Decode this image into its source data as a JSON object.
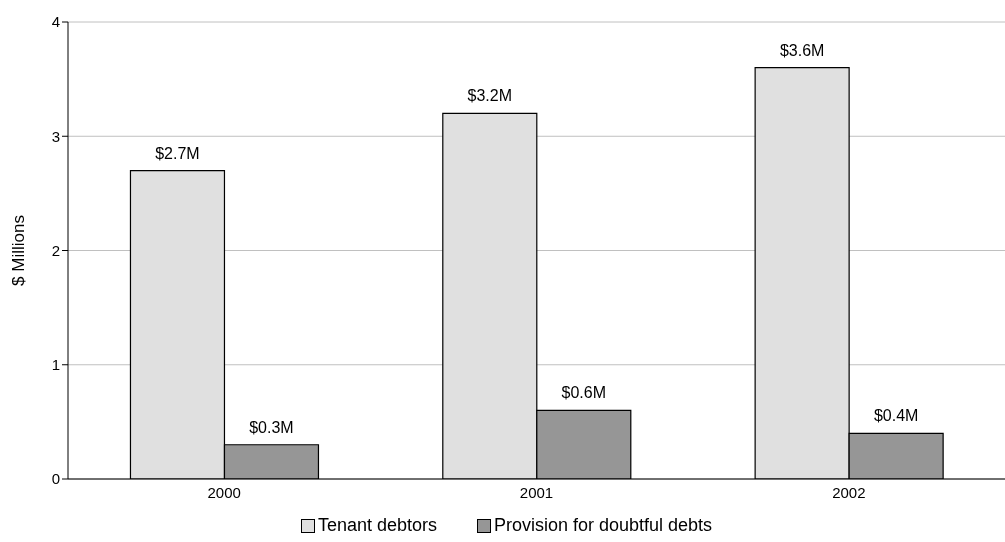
{
  "chart_data": {
    "type": "bar",
    "ylabel": "$ Millions",
    "categories": [
      "2000",
      "2001",
      "2002"
    ],
    "series": [
      {
        "name": "Tenant debtors",
        "color": "#e0e0e0",
        "values": [
          2.7,
          3.2,
          3.6
        ],
        "value_labels": [
          "$2.7M",
          "$3.2M",
          "$3.6M"
        ]
      },
      {
        "name": "Provision for doubtful debts",
        "color": "#969696",
        "values": [
          0.3,
          0.6,
          0.4
        ],
        "value_labels": [
          "$0.3M",
          "$0.6M",
          "$0.4M"
        ]
      }
    ],
    "ylim": [
      0,
      4
    ],
    "yticks": [
      0,
      1,
      2,
      3,
      4
    ],
    "grid": "y",
    "legend": "bottom"
  }
}
